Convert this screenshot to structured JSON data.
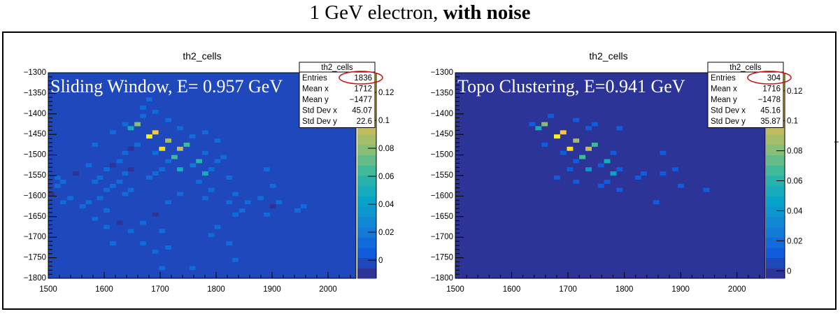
{
  "header": {
    "title_plain": "1 GeV electron, ",
    "title_bold": "with noise"
  },
  "chart_data": [
    {
      "type": "heatmap",
      "title": "th2_cells",
      "overlay_label": "Sliding Window, E= 0.957 GeV",
      "xlim": [
        1500,
        2050
      ],
      "ylim": [
        -1800,
        -1300
      ],
      "zlim": [
        -0.013,
        0.134
      ],
      "x_bin_width": 11,
      "y_bin_width": 10,
      "x_ticks": [
        1500,
        1600,
        1700,
        1800,
        1900,
        2000
      ],
      "y_ticks": [
        -1300,
        -1350,
        -1400,
        -1450,
        -1500,
        -1550,
        -1600,
        -1650,
        -1700,
        -1750,
        -1800
      ],
      "z_ticks": [
        0,
        0.02,
        0.04,
        0.06,
        0.08,
        0.1,
        0.12
      ],
      "z_tick_labels": [
        "0",
        "0.02",
        "0.04",
        "0.06",
        "0.08",
        "0.1",
        "0.12"
      ],
      "background_value": 0,
      "stats": {
        "title": "th2_cells",
        "rows": [
          [
            "Entries",
            "1836"
          ],
          [
            "Mean x",
            "1712"
          ],
          [
            "Mean y",
            "−1477"
          ],
          [
            "Std Dev x",
            "45.07"
          ],
          [
            "Std Dev y",
            "22.6"
          ]
        ]
      },
      "highlight": "Entries",
      "cells": [
        [
          1675,
          -1450,
          0.13
        ],
        [
          1686,
          -1440,
          0.115
        ],
        [
          1709,
          -1460,
          0.085
        ],
        [
          1698,
          -1480,
          0.12
        ],
        [
          1730,
          -1480,
          0.095
        ],
        [
          1742,
          -1470,
          0.065
        ],
        [
          1654,
          -1420,
          0.08
        ],
        [
          1642,
          -1430,
          0.05
        ],
        [
          1720,
          -1500,
          0.065
        ],
        [
          1764,
          -1510,
          0.055
        ],
        [
          1730,
          -1530,
          0.048
        ],
        [
          1775,
          -1540,
          0.05
        ],
        [
          1675,
          -1360,
          0.012
        ],
        [
          1664,
          -1380,
          0.012
        ],
        [
          1686,
          -1390,
          0.01
        ],
        [
          1664,
          -1400,
          0.012
        ],
        [
          1709,
          -1410,
          0.01
        ],
        [
          1632,
          -1420,
          0.01
        ],
        [
          1730,
          -1430,
          0.01
        ],
        [
          1610,
          -1440,
          0.01
        ],
        [
          1775,
          -1440,
          0.01
        ],
        [
          1752,
          -1450,
          0.01
        ],
        [
          1797,
          -1460,
          0.01
        ],
        [
          1578,
          -1470,
          0.01
        ],
        [
          1654,
          -1470,
          0.01
        ],
        [
          1642,
          -1480,
          -0.008
        ],
        [
          1632,
          -1490,
          0.01
        ],
        [
          1686,
          -1490,
          0.012
        ],
        [
          1775,
          -1490,
          0.015
        ],
        [
          1808,
          -1500,
          0.01
        ],
        [
          1622,
          -1510,
          0.01
        ],
        [
          1709,
          -1510,
          0.012
        ],
        [
          1797,
          -1510,
          0.01
        ],
        [
          1567,
          -1520,
          0.01
        ],
        [
          1610,
          -1520,
          -0.008
        ],
        [
          1753,
          -1520,
          0.018
        ],
        [
          1599,
          -1530,
          0.01
        ],
        [
          1642,
          -1530,
          -0.008
        ],
        [
          1698,
          -1530,
          0.01
        ],
        [
          1786,
          -1530,
          0.01
        ],
        [
          1885,
          -1530,
          0.01
        ],
        [
          1544,
          -1540,
          -0.008
        ],
        [
          1632,
          -1540,
          0.01
        ],
        [
          1686,
          -1540,
          0.01
        ],
        [
          1511,
          -1550,
          0.01
        ],
        [
          1587,
          -1550,
          0.01
        ],
        [
          1675,
          -1550,
          0.01
        ],
        [
          1818,
          -1550,
          0.01
        ],
        [
          1521,
          -1560,
          0.01
        ],
        [
          1578,
          -1560,
          0.01
        ],
        [
          1622,
          -1560,
          0.01
        ],
        [
          1764,
          -1560,
          0.01
        ],
        [
          1511,
          -1570,
          0.015
        ],
        [
          1610,
          -1570,
          0.01
        ],
        [
          1896,
          -1570,
          0.01
        ],
        [
          1599,
          -1580,
          0.01
        ],
        [
          1642,
          -1580,
          0.01
        ],
        [
          1786,
          -1580,
          0.01
        ],
        [
          1632,
          -1590,
          0.01
        ],
        [
          1730,
          -1590,
          0.01
        ],
        [
          1829,
          -1590,
          0.01
        ],
        [
          1500,
          -1590,
          -0.006
        ],
        [
          1534,
          -1600,
          0.01
        ],
        [
          1587,
          -1600,
          0.01
        ],
        [
          1775,
          -1600,
          0.01
        ],
        [
          1874,
          -1600,
          0.01
        ],
        [
          1521,
          -1610,
          0.01
        ],
        [
          1567,
          -1610,
          0.01
        ],
        [
          1709,
          -1610,
          0.01
        ],
        [
          1818,
          -1610,
          0.01
        ],
        [
          1851,
          -1610,
          0.01
        ],
        [
          1907,
          -1610,
          0.01
        ],
        [
          1556,
          -1620,
          0.01
        ],
        [
          1896,
          -1620,
          -0.008
        ],
        [
          1951,
          -1620,
          0.01
        ],
        [
          1599,
          -1630,
          0.01
        ],
        [
          1841,
          -1630,
          0.01
        ],
        [
          1940,
          -1630,
          0.01
        ],
        [
          1686,
          -1640,
          -0.008
        ],
        [
          1829,
          -1640,
          0.01
        ],
        [
          1885,
          -1640,
          0.01
        ],
        [
          1578,
          -1650,
          0.01
        ],
        [
          1622,
          -1660,
          -0.008
        ],
        [
          1664,
          -1660,
          0.01
        ],
        [
          1599,
          -1670,
          0.01
        ],
        [
          1797,
          -1670,
          0.01
        ],
        [
          1642,
          -1680,
          0.01
        ],
        [
          1698,
          -1680,
          0.01
        ],
        [
          1786,
          -1690,
          0.01
        ],
        [
          1610,
          -1710,
          0.01
        ],
        [
          1664,
          -1710,
          0.01
        ],
        [
          1818,
          -1710,
          0.01
        ],
        [
          1709,
          -1720,
          0.01
        ],
        [
          1686,
          -1730,
          0.01
        ],
        [
          1829,
          -1750,
          0.01
        ],
        [
          1698,
          -1770,
          0.01
        ],
        [
          1752,
          -1770,
          0.01
        ]
      ]
    },
    {
      "type": "heatmap",
      "title": "th2_cells",
      "overlay_label": "Topo Clustering, E=0.941 GeV",
      "xlim": [
        1500,
        2050
      ],
      "ylim": [
        -1800,
        -1300
      ],
      "zlim": [
        -0.005,
        0.132
      ],
      "x_bin_width": 11,
      "y_bin_width": 10,
      "x_ticks": [
        1500,
        1600,
        1700,
        1800,
        1900,
        2000
      ],
      "y_ticks": [
        -1300,
        -1350,
        -1400,
        -1450,
        -1500,
        -1550,
        -1600,
        -1650,
        -1700,
        -1750,
        -1800
      ],
      "z_ticks": [
        0,
        0.02,
        0.04,
        0.06,
        0.08,
        0.1,
        0.12
      ],
      "z_tick_labels": [
        "0",
        "0.02",
        "0.04",
        "0.06",
        "0.08",
        "0.1",
        "0.12"
      ],
      "background_value": 0,
      "stats": {
        "title": "th2_cells",
        "rows": [
          [
            "Entries",
            "304"
          ],
          [
            "Mean x",
            "1716"
          ],
          [
            "Mean y",
            "−1478"
          ],
          [
            "Std Dev x",
            "45.16"
          ],
          [
            "Std Dev y",
            "35.87"
          ]
        ]
      },
      "highlight": "Entries",
      "cells": [
        [
          1664,
          -1400,
          0.012
        ],
        [
          1709,
          -1410,
          0.012
        ],
        [
          1631,
          -1420,
          0.012
        ],
        [
          1653,
          -1420,
          0.08
        ],
        [
          1742,
          -1420,
          0.012
        ],
        [
          1642,
          -1430,
          0.05
        ],
        [
          1731,
          -1430,
          0.012
        ],
        [
          1786,
          -1430,
          0.012
        ],
        [
          1686,
          -1440,
          0.115
        ],
        [
          1675,
          -1450,
          0.13
        ],
        [
          1709,
          -1460,
          0.085
        ],
        [
          1653,
          -1470,
          0.012
        ],
        [
          1742,
          -1470,
          0.065
        ],
        [
          1698,
          -1480,
          0.125
        ],
        [
          1731,
          -1480,
          0.095
        ],
        [
          1686,
          -1490,
          0.012
        ],
        [
          1775,
          -1490,
          0.012
        ],
        [
          1863,
          -1490,
          0.012
        ],
        [
          1720,
          -1500,
          0.065
        ],
        [
          1709,
          -1510,
          0.012
        ],
        [
          1764,
          -1510,
          0.05
        ],
        [
          1753,
          -1520,
          0.015
        ],
        [
          1698,
          -1530,
          0.012
        ],
        [
          1731,
          -1530,
          0.04
        ],
        [
          1786,
          -1530,
          0.012
        ],
        [
          1885,
          -1530,
          0.012
        ],
        [
          1775,
          -1540,
          0.045
        ],
        [
          1829,
          -1540,
          0.012
        ],
        [
          1863,
          -1540,
          0.012
        ],
        [
          1675,
          -1550,
          0.012
        ],
        [
          1819,
          -1550,
          0.012
        ],
        [
          1709,
          -1560,
          0.012
        ],
        [
          1764,
          -1560,
          0.012
        ],
        [
          1753,
          -1570,
          0.012
        ],
        [
          1895,
          -1570,
          0.012
        ],
        [
          1786,
          -1580,
          0.012
        ],
        [
          1940,
          -1580,
          0.012
        ],
        [
          1851,
          -1610,
          0.012
        ]
      ]
    }
  ],
  "colors": {
    "ellipse": "#cc1111",
    "frame": "#000000",
    "overlay_text": "#ffffff"
  }
}
